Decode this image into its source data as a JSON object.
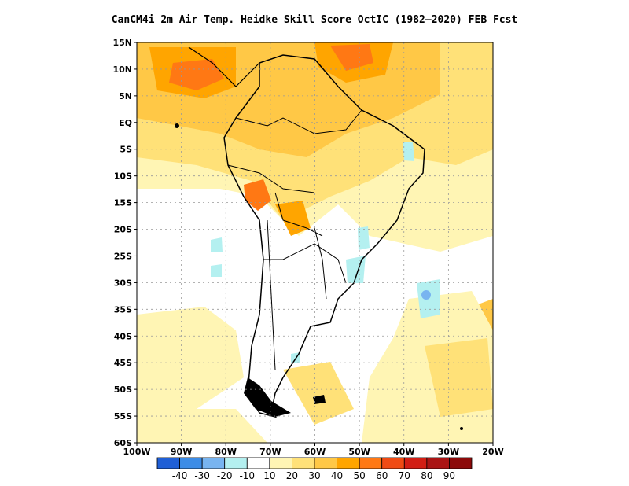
{
  "title": "CanCM4i  2m Air Temp. Heidke Skill Score OctIC (1982–2020) FEB Fcst",
  "map": {
    "lat_labels": [
      "15N",
      "10N",
      "5N",
      "EQ",
      "5S",
      "10S",
      "15S",
      "20S",
      "25S",
      "30S",
      "35S",
      "40S",
      "45S",
      "50S",
      "55S",
      "60S"
    ],
    "lon_labels": [
      "100W",
      "90W",
      "80W",
      "70W",
      "60W",
      "50W",
      "40W",
      "30W",
      "20W"
    ]
  },
  "colorbar": {
    "labels": [
      "-40",
      "-30",
      "-20",
      "-10",
      "10",
      "20",
      "30",
      "40",
      "50",
      "60",
      "70",
      "80",
      "90"
    ],
    "colors": [
      "#1f5fd6",
      "#3c8ce6",
      "#78b4f0",
      "#b4f0f0",
      "#ffffff",
      "#fff5b4",
      "#ffe178",
      "#ffc846",
      "#ffa500",
      "#ff7814",
      "#f04b14",
      "#d21e14",
      "#aa1414",
      "#8c0a0a"
    ]
  }
}
